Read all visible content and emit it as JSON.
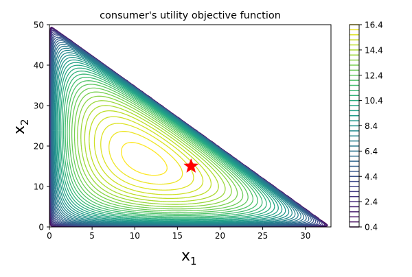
{
  "chart_data": {
    "type": "contour",
    "title": "consumer's utility objective function",
    "xlabel": "x",
    "xlabel_sub": "1",
    "ylabel": "x",
    "ylabel_sub": "2",
    "xlim": [
      0,
      33
    ],
    "ylim": [
      0,
      50
    ],
    "x_ticks": [
      "0",
      "5",
      "10",
      "15",
      "20",
      "25",
      "30"
    ],
    "y_ticks": [
      "0",
      "10",
      "20",
      "30",
      "40",
      "50"
    ],
    "feasible_region": {
      "vertices": [
        [
          0,
          0
        ],
        [
          33,
          0
        ],
        [
          0,
          50
        ]
      ]
    },
    "optimum": {
      "x": 16.6,
      "y": 15.0,
      "marker": "star",
      "color": "#ff0000"
    },
    "colorbar": {
      "min": 0.4,
      "max": 16.4,
      "step": 0.4,
      "ticks": [
        "0.4",
        "2.4",
        "4.4",
        "6.4",
        "8.4",
        "10.4",
        "12.4",
        "14.4",
        "16.4"
      ],
      "colormap": "viridis"
    },
    "contour_levels": {
      "min": 0.4,
      "max": 16.4,
      "step": 0.4
    },
    "grid": false
  }
}
